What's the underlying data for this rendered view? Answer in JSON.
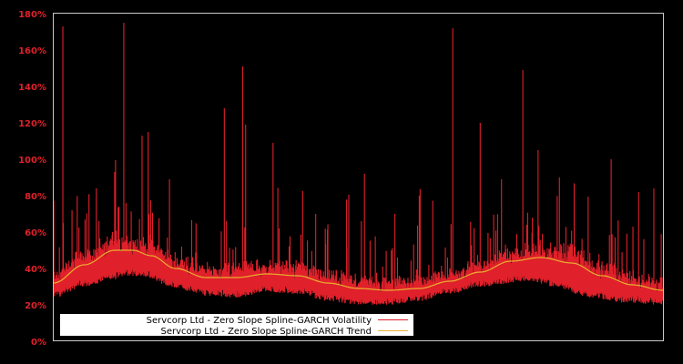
{
  "chart_data": {
    "type": "line",
    "title": "",
    "xlabel": "",
    "ylabel": "",
    "ylim": [
      0,
      180
    ],
    "y_ticks": [
      "0%",
      "20%",
      "40%",
      "60%",
      "80%",
      "100%",
      "120%",
      "140%",
      "160%",
      "180%"
    ],
    "grid": false,
    "legend_position": "lower left",
    "background": "#000000",
    "frame_color": "#c8c8c8",
    "series": [
      {
        "name": "Servcorp Ltd - Zero Slope Spline-GARCH Volatility",
        "color": "#e0202a",
        "description": "Noisy daily volatility, baseline roughly 22-38%, with frequent spikes; largest spikes ~175%, ~173%, ~172%, ~150%, ~149%",
        "baseline_points": [
          [
            0,
            26
          ],
          [
            0.05,
            32
          ],
          [
            0.1,
            36
          ],
          [
            0.12,
            38
          ],
          [
            0.15,
            37
          ],
          [
            0.2,
            31
          ],
          [
            0.25,
            27
          ],
          [
            0.3,
            26
          ],
          [
            0.35,
            29
          ],
          [
            0.4,
            28
          ],
          [
            0.45,
            24
          ],
          [
            0.5,
            22
          ],
          [
            0.55,
            22
          ],
          [
            0.6,
            24
          ],
          [
            0.65,
            28
          ],
          [
            0.7,
            32
          ],
          [
            0.78,
            35
          ],
          [
            0.82,
            32
          ],
          [
            0.88,
            26
          ],
          [
            0.94,
            23
          ],
          [
            1.0,
            22
          ]
        ],
        "spikes": [
          [
            0.015,
            173
          ],
          [
            0.03,
            72
          ],
          [
            0.07,
            84
          ],
          [
            0.1,
            93
          ],
          [
            0.115,
            108
          ],
          [
            0.115,
            175
          ],
          [
            0.145,
            113
          ],
          [
            0.155,
            115
          ],
          [
            0.19,
            89
          ],
          [
            0.28,
            128
          ],
          [
            0.31,
            151
          ],
          [
            0.315,
            119
          ],
          [
            0.36,
            109
          ],
          [
            0.43,
            70
          ],
          [
            0.51,
            92
          ],
          [
            0.56,
            70
          ],
          [
            0.6,
            80
          ],
          [
            0.655,
            172
          ],
          [
            0.7,
            120
          ],
          [
            0.735,
            89
          ],
          [
            0.77,
            149
          ],
          [
            0.795,
            105
          ],
          [
            0.83,
            90
          ],
          [
            0.915,
            100
          ],
          [
            0.96,
            82
          ],
          [
            0.985,
            84
          ]
        ]
      },
      {
        "name": "Servcorp Ltd - Zero Slope Spline-GARCH Trend",
        "color": "#e8b030",
        "points": [
          [
            0,
            32
          ],
          [
            0.05,
            42
          ],
          [
            0.1,
            50
          ],
          [
            0.13,
            50
          ],
          [
            0.16,
            47
          ],
          [
            0.2,
            40
          ],
          [
            0.25,
            35
          ],
          [
            0.3,
            35
          ],
          [
            0.35,
            37
          ],
          [
            0.4,
            36
          ],
          [
            0.45,
            32
          ],
          [
            0.5,
            29
          ],
          [
            0.55,
            28
          ],
          [
            0.6,
            29
          ],
          [
            0.65,
            33
          ],
          [
            0.7,
            38
          ],
          [
            0.75,
            44
          ],
          [
            0.8,
            46
          ],
          [
            0.85,
            43
          ],
          [
            0.9,
            36
          ],
          [
            0.95,
            31
          ],
          [
            1.0,
            28
          ]
        ]
      }
    ]
  },
  "legend": {
    "items": [
      {
        "label": "Servcorp Ltd - Zero Slope Spline-GARCH Volatility",
        "color": "#e0202a"
      },
      {
        "label": "Servcorp Ltd - Zero Slope Spline-GARCH Trend",
        "color": "#e8b030"
      }
    ]
  }
}
